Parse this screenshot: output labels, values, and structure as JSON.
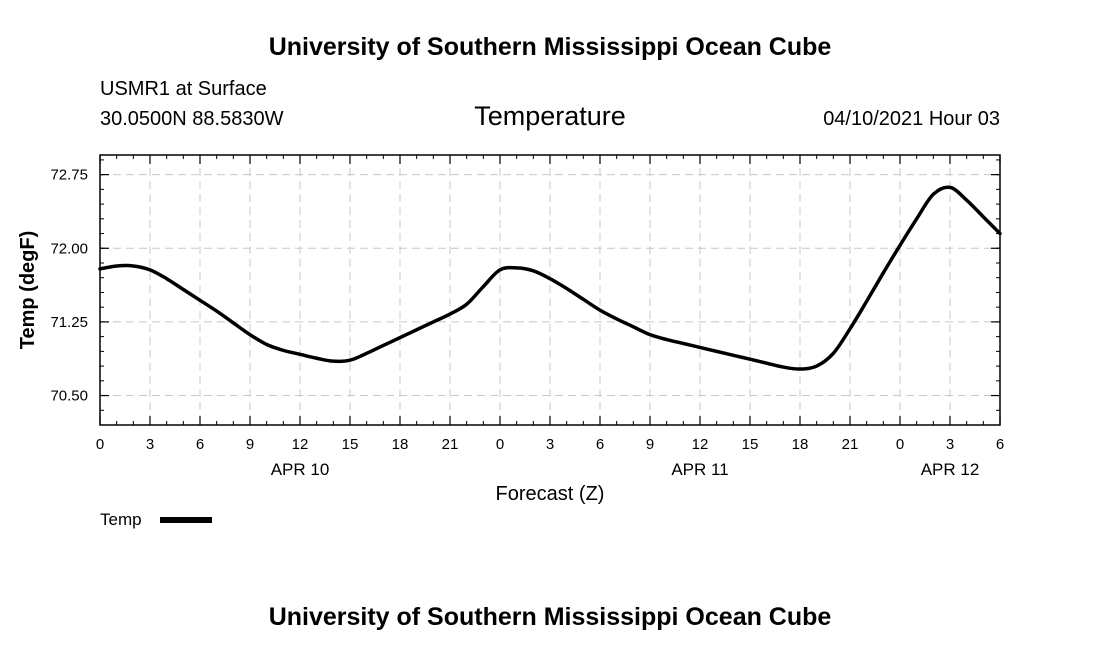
{
  "page": {
    "header_title": "University of Southern Mississippi Ocean Cube",
    "footer_title": "University of Southern Mississippi Ocean Cube",
    "station": "USMR1 at Surface",
    "coordinates": "30.0500N  88.5830W",
    "date_time": "04/10/2021 Hour 03"
  },
  "chart_data": {
    "type": "line",
    "title": "Temperature",
    "xlabel": "Forecast (Z)",
    "ylabel": "Temp (degF)",
    "x_unit": "hours since 04/10/2021 00Z",
    "xlim": [
      0,
      54
    ],
    "ylim": [
      70.2,
      72.95
    ],
    "x_ticks": [
      0,
      3,
      6,
      9,
      12,
      15,
      18,
      21,
      24,
      27,
      30,
      33,
      36,
      39,
      42,
      45,
      48,
      51,
      54
    ],
    "x_tick_labels": [
      "0",
      "3",
      "6",
      "9",
      "12",
      "15",
      "18",
      "21",
      "0",
      "3",
      "6",
      "9",
      "12",
      "15",
      "18",
      "21",
      "0",
      "3",
      "6"
    ],
    "x_minor_step": 1,
    "y_ticks": [
      70.5,
      71.25,
      72.0,
      72.75
    ],
    "y_tick_labels": [
      "70.50",
      "71.25",
      "72.00",
      "72.75"
    ],
    "y_minor_step": 0.15,
    "day_labels": [
      {
        "x": 12,
        "label": "APR 10"
      },
      {
        "x": 36,
        "label": "APR 11"
      },
      {
        "x": 51,
        "label": "APR 12"
      }
    ],
    "grid": true,
    "legend": "bottom-left",
    "series": [
      {
        "name": "Temp",
        "color": "#000000",
        "x": [
          0,
          1,
          2,
          3,
          4,
          5,
          6,
          7,
          8,
          9,
          10,
          11,
          12,
          13,
          14,
          15,
          16,
          17,
          18,
          19,
          20,
          21,
          22,
          23,
          24,
          25,
          26,
          27,
          28,
          29,
          30,
          31,
          32,
          33,
          34,
          35,
          36,
          37,
          38,
          39,
          40,
          41,
          42,
          43,
          44,
          45,
          46,
          47,
          48,
          49,
          50,
          51,
          52,
          53,
          54
        ],
        "values": [
          71.79,
          71.82,
          71.82,
          71.78,
          71.69,
          71.58,
          71.47,
          71.36,
          71.24,
          71.12,
          71.02,
          70.96,
          70.92,
          70.88,
          70.85,
          70.86,
          70.93,
          71.01,
          71.09,
          71.17,
          71.25,
          71.33,
          71.43,
          71.61,
          71.78,
          71.8,
          71.77,
          71.69,
          71.59,
          71.48,
          71.37,
          71.28,
          71.2,
          71.12,
          71.07,
          71.03,
          70.99,
          70.95,
          70.91,
          70.87,
          70.83,
          70.79,
          70.77,
          70.8,
          70.93,
          71.18,
          71.46,
          71.75,
          72.03,
          72.3,
          72.55,
          72.62,
          72.49,
          72.32,
          72.15
        ]
      }
    ]
  }
}
